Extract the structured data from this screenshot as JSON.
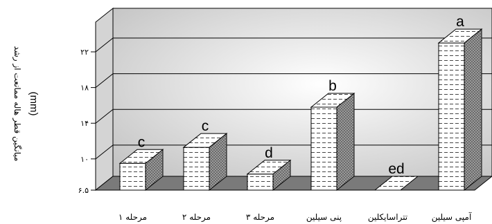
{
  "chart_data": {
    "type": "bar",
    "style": "3d",
    "categories": [
      "مرحله ۱",
      "مرحله ۲",
      "مرحله ۳",
      "پنی سیلین",
      "تتراسایکلین",
      "آمپی سیلین"
    ],
    "values": [
      9.5,
      11.3,
      8.3,
      15.8,
      6.5,
      23.0
    ],
    "data_labels": [
      "c",
      "c",
      "d",
      "b",
      "ed",
      "a"
    ],
    "ylabel": "میانگین قطر هاله ممانعت از رشد",
    "yunit": "(mm)",
    "yticks": [
      "۶.۵",
      "۱۰",
      "۱۴",
      "۱۸",
      "۲۲"
    ],
    "ytick_values": [
      6.5,
      10,
      14,
      18,
      22
    ],
    "ylim": [
      6.5,
      24
    ],
    "grid": true,
    "colors": {
      "wall_light": "#ffffff",
      "wall_dark": "#c2c2c2",
      "floor": "#7a7a7a",
      "bar_face": "#ffffff",
      "bar_side": "#8f8f8f",
      "bar_top": "#d9d9d9"
    }
  }
}
